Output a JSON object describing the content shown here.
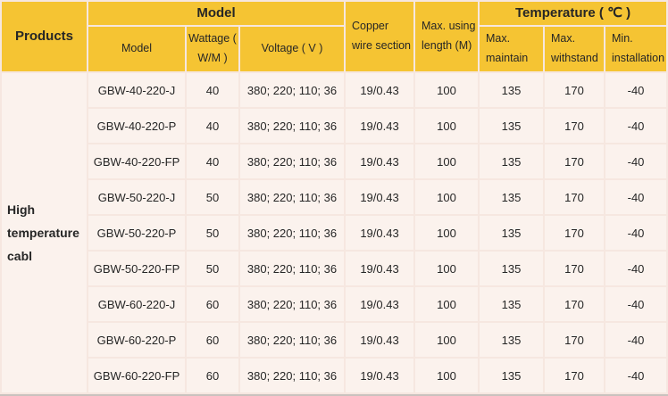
{
  "colors": {
    "header_bg": "#F5C433",
    "row_bg": "#FBF2ED",
    "gap": "#F6E7E0",
    "bottom_border": "#C9C2BE",
    "text": "#262626"
  },
  "table": {
    "products_header": "Products",
    "product_name": "High temperature cabl",
    "groups": {
      "model": "Model",
      "temperature": "Temperature ( ℃ )"
    },
    "columns": [
      "Model",
      "Wattage ( W/M )",
      "Voltage ( V )",
      "Copper wire section",
      "Max. using length (M)",
      "Max. maintain",
      "Max. withstand",
      "Min. installation"
    ],
    "rows": [
      {
        "model": "GBW-40-220-J",
        "wattage": "40",
        "voltage": "380; 220; 110; 36",
        "copper_wire_section": "19/0.43",
        "max_using_length": "100",
        "max_maintain": "135",
        "max_withstand": "170",
        "min_installation": "-40"
      },
      {
        "model": "GBW-40-220-P",
        "wattage": "40",
        "voltage": "380; 220; 110; 36",
        "copper_wire_section": "19/0.43",
        "max_using_length": "100",
        "max_maintain": "135",
        "max_withstand": "170",
        "min_installation": "-40"
      },
      {
        "model": "GBW-40-220-FP",
        "wattage": "40",
        "voltage": "380; 220; 110; 36",
        "copper_wire_section": "19/0.43",
        "max_using_length": "100",
        "max_maintain": "135",
        "max_withstand": "170",
        "min_installation": "-40"
      },
      {
        "model": "GBW-50-220-J",
        "wattage": "50",
        "voltage": "380; 220; 110; 36",
        "copper_wire_section": "19/0.43",
        "max_using_length": "100",
        "max_maintain": "135",
        "max_withstand": "170",
        "min_installation": "-40"
      },
      {
        "model": "GBW-50-220-P",
        "wattage": "50",
        "voltage": "380; 220; 110; 36",
        "copper_wire_section": "19/0.43",
        "max_using_length": "100",
        "max_maintain": "135",
        "max_withstand": "170",
        "min_installation": "-40"
      },
      {
        "model": "GBW-50-220-FP",
        "wattage": "50",
        "voltage": "380; 220; 110; 36",
        "copper_wire_section": "19/0.43",
        "max_using_length": "100",
        "max_maintain": "135",
        "max_withstand": "170",
        "min_installation": "-40"
      },
      {
        "model": "GBW-60-220-J",
        "wattage": "60",
        "voltage": "380; 220; 110; 36",
        "copper_wire_section": "19/0.43",
        "max_using_length": "100",
        "max_maintain": "135",
        "max_withstand": "170",
        "min_installation": "-40"
      },
      {
        "model": "GBW-60-220-P",
        "wattage": "60",
        "voltage": "380; 220; 110; 36",
        "copper_wire_section": "19/0.43",
        "max_using_length": "100",
        "max_maintain": "135",
        "max_withstand": "170",
        "min_installation": "-40"
      },
      {
        "model": "GBW-60-220-FP",
        "wattage": "60",
        "voltage": "380; 220; 110; 36",
        "copper_wire_section": "19/0.43",
        "max_using_length": "100",
        "max_maintain": "135",
        "max_withstand": "170",
        "min_installation": "-40"
      }
    ]
  }
}
